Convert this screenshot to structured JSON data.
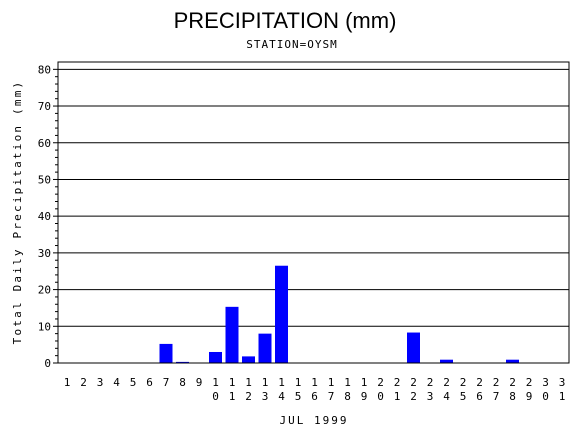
{
  "chart_data": {
    "type": "bar",
    "title": "PRECIPITATION (mm)",
    "subtitle": "STATION=OYSM",
    "xlabel": "JUL 1999",
    "ylabel": "Total Daily Precipitation (mm)",
    "ylim": [
      0,
      82
    ],
    "yticks": [
      0,
      10,
      20,
      30,
      40,
      50,
      60,
      70,
      80
    ],
    "grid": true,
    "bar_color": "#0000ff",
    "categories": [
      "1",
      "2",
      "3",
      "4",
      "5",
      "6",
      "7",
      "8",
      "9",
      "10",
      "11",
      "12",
      "13",
      "14",
      "15",
      "16",
      "17",
      "18",
      "19",
      "20",
      "21",
      "22",
      "23",
      "24",
      "25",
      "26",
      "27",
      "28",
      "29",
      "30",
      "31"
    ],
    "values": [
      0,
      0,
      0,
      0,
      0,
      0,
      5.2,
      0.3,
      0,
      3.0,
      15.3,
      1.8,
      8.0,
      26.5,
      0,
      0,
      0,
      0,
      0,
      0,
      0,
      8.3,
      0,
      0.9,
      0,
      0,
      0,
      0.9,
      0,
      0,
      0
    ]
  }
}
